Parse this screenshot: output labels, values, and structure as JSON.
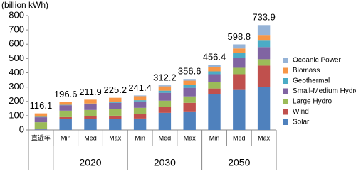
{
  "chart_data": {
    "type": "stacked_bar",
    "y_axis_label": "(billion kWh)",
    "categories": [
      "直近年",
      "Min",
      "Med",
      "Max",
      "Min",
      "Med",
      "Max",
      "Min",
      "Med",
      "Max"
    ],
    "group_labels": [
      "2020",
      "2030",
      "2050"
    ],
    "series": [
      {
        "name": "Solar",
        "color": "#4f81bd",
        "values": [
          4,
          75,
          75,
          75,
          80,
          120,
          130,
          250,
          280,
          300
        ]
      },
      {
        "name": "Wind",
        "color": "#c0504d",
        "values": [
          5,
          15,
          20,
          25,
          30,
          40,
          60,
          40,
          110,
          150
        ]
      },
      {
        "name": "Large Hydro",
        "color": "#9bbb59",
        "values": [
          45,
          45,
          45,
          45,
          45,
          45,
          45,
          45,
          45,
          45
        ]
      },
      {
        "name": "Small-Medium Hydro",
        "color": "#8064a2",
        "values": [
          35,
          38,
          40,
          45,
          45,
          55,
          60,
          55,
          70,
          85
        ]
      },
      {
        "name": "Geothermal",
        "color": "#4bacc6",
        "values": [
          3,
          3,
          5,
          8,
          8,
          15,
          20,
          20,
          35,
          45
        ]
      },
      {
        "name": "Biomass",
        "color": "#f79646",
        "values": [
          24.1,
          20.6,
          26.9,
          27.2,
          28.4,
          30,
          30,
          30,
          30,
          40
        ]
      },
      {
        "name": "Oceanic Power",
        "color": "#95b3d7",
        "values": [
          0,
          0,
          0,
          0,
          5,
          7.2,
          11.6,
          16.4,
          28.8,
          68.9
        ]
      }
    ],
    "totals": [
      116.1,
      196.6,
      211.9,
      225.2,
      241.4,
      312.2,
      356.6,
      456.4,
      598.8,
      733.9
    ],
    "ylim": [
      0,
      800
    ],
    "yticks": [
      0,
      100,
      200,
      300,
      400,
      500,
      600,
      700,
      800
    ]
  }
}
